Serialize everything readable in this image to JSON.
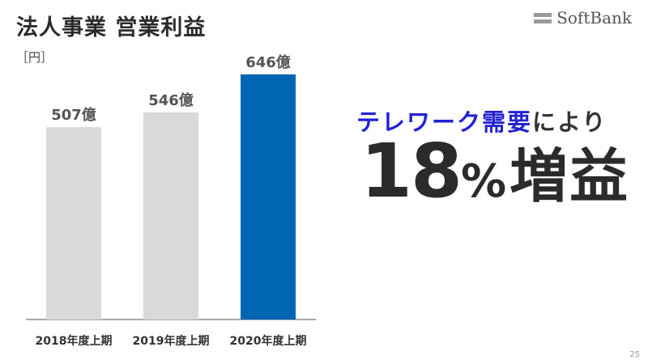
{
  "title": "法人事業 営業利益",
  "logo": {
    "text": "SoftBank"
  },
  "unit_label": "［円］",
  "chart_data": {
    "type": "bar",
    "categories": [
      "2018年度上期",
      "2019年度上期",
      "2020年度上期"
    ],
    "values": [
      507,
      546,
      646
    ],
    "data_labels": [
      "507億",
      "546億",
      "646億"
    ],
    "ylabel": "［円］",
    "ylim": [
      0,
      646
    ],
    "colors": [
      "#d9d9d9",
      "#d9d9d9",
      "#0066b3"
    ]
  },
  "headline": {
    "blue_part": "テレワーク需要",
    "dark_part": "により"
  },
  "growth": {
    "number": "18",
    "percent": "%",
    "text": "増益"
  },
  "page_number": "25",
  "colors": {
    "accent_bar": "#0066b3",
    "gray_bar": "#d9d9d9",
    "headline_blue": "#2222d6"
  }
}
